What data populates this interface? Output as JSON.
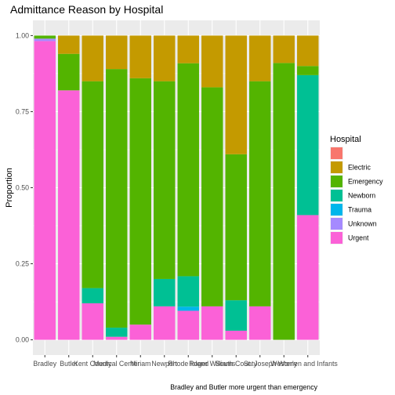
{
  "chart_data": {
    "type": "bar",
    "stacked": true,
    "title": "Admittance Reason by Hospital",
    "xlabel": "",
    "ylabel": "Proportion",
    "caption": "Bradley and Butler more urgent than emergency",
    "ylim": [
      0,
      1
    ],
    "yticks": [
      "0.00",
      "0.25",
      "0.50",
      "0.75",
      "1.00"
    ],
    "ytick_values": [
      0,
      0.25,
      0.5,
      0.75,
      1.0
    ],
    "grid": true,
    "legend": {
      "title": "Hospital",
      "position": "right"
    },
    "categories": [
      "Bradley",
      "Butler",
      "Kent County",
      "Medical Center",
      "Miriam",
      "Newport",
      "Rhode Island",
      "Roger Williams",
      "South County",
      "St. Joseph",
      "Westerly",
      "Women and Infants"
    ],
    "series": [
      {
        "name": "",
        "color": "#F8766D",
        "values": [
          0,
          0,
          0,
          0,
          0,
          0,
          0,
          0,
          0,
          0,
          0,
          0
        ]
      },
      {
        "name": "Electric",
        "color": "#C49A00",
        "values": [
          0,
          0.06,
          0.15,
          0.11,
          0.14,
          0.15,
          0.1,
          0.17,
          0.39,
          0.15,
          0.09,
          0.1
        ]
      },
      {
        "name": "Emergency",
        "color": "#53B400",
        "values": [
          0.01,
          0.12,
          0.68,
          0.85,
          0.81,
          0.65,
          0.77,
          0.72,
          0.48,
          0.74,
          0.91,
          0.03
        ]
      },
      {
        "name": "Newborn",
        "color": "#00C094",
        "values": [
          0,
          0,
          0.05,
          0.03,
          0,
          0.09,
          0.11,
          0,
          0.1,
          0,
          0,
          0.46
        ]
      },
      {
        "name": "Trauma",
        "color": "#00B6EB",
        "values": [
          0,
          0,
          0,
          0,
          0,
          0,
          0.015,
          0,
          0,
          0,
          0,
          0
        ]
      },
      {
        "name": "Unknown",
        "color": "#A58AFF",
        "values": [
          0.008,
          0,
          0,
          0,
          0,
          0,
          0,
          0,
          0,
          0,
          0,
          0
        ]
      },
      {
        "name": "Urgent",
        "color": "#FB61D7",
        "values": [
          0.982,
          0.82,
          0.12,
          0.01,
          0.05,
          0.11,
          0.105,
          0.11,
          0.03,
          0.11,
          0,
          0.41
        ]
      }
    ]
  }
}
